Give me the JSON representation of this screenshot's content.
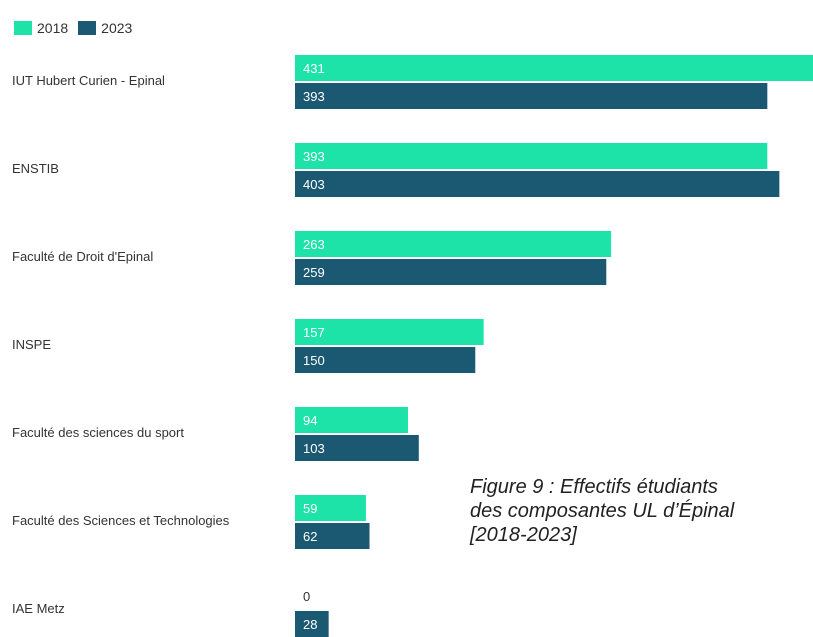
{
  "colors": {
    "2018": "#1de3a8",
    "2023": "#1b5872",
    "label_on_bar": "#ffffff",
    "category_text": "#333333"
  },
  "legend": {
    "items": [
      {
        "label": "2018"
      },
      {
        "label": "2023"
      }
    ]
  },
  "caption": {
    "line1": "Figure 9 : Effectifs étudiants",
    "line2": "des composantes UL d’Épinal",
    "line3": "[2018-2023]"
  },
  "chart_data": {
    "type": "bar",
    "orientation": "horizontal",
    "categories": [
      "IUT Hubert Curien - Epinal",
      "ENSTIB",
      "Faculté de Droit d'Epinal",
      "INSPE",
      "Faculté des sciences du sport",
      "Faculté des Sciences et Technologies",
      "IAE Metz"
    ],
    "series": [
      {
        "name": "2018",
        "values": [
          431,
          393,
          263,
          157,
          94,
          59,
          0
        ]
      },
      {
        "name": "2023",
        "values": [
          393,
          403,
          259,
          150,
          103,
          62,
          28
        ]
      }
    ],
    "xlim": [
      0,
      431
    ],
    "grid": false,
    "legend_position": "top-left",
    "data_labels": true
  }
}
